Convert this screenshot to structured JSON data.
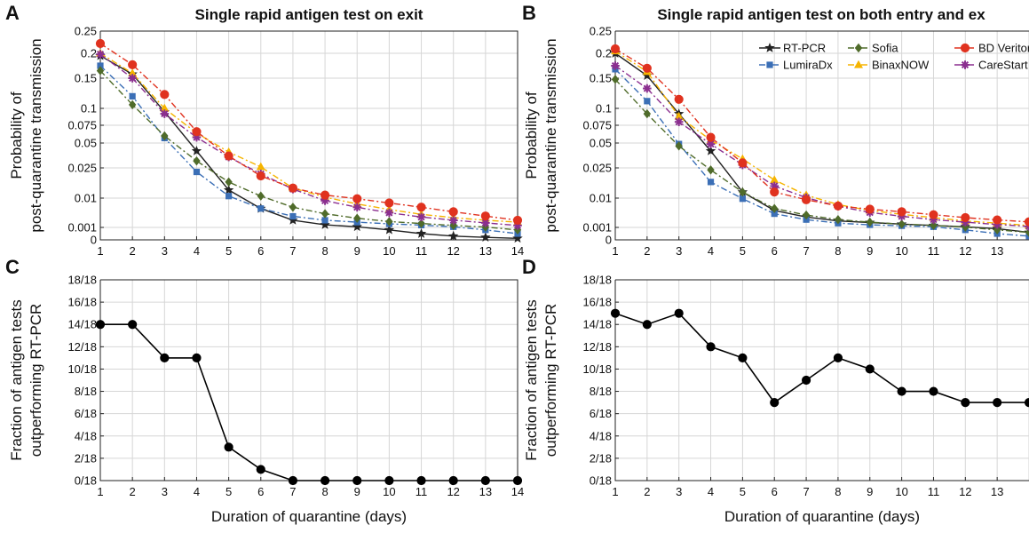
{
  "chart_data": [
    {
      "panel": "A",
      "type": "line",
      "title": "Single rapid antigen test on exit",
      "xlabel": "",
      "ylabel": [
        "Probability of",
        "post-quarantine transmission"
      ],
      "x": [
        1,
        2,
        3,
        4,
        5,
        6,
        7,
        8,
        9,
        10,
        11,
        12,
        13,
        14
      ],
      "xlim": [
        1,
        14
      ],
      "xticks": [
        "1",
        "2",
        "3",
        "4",
        "5",
        "6",
        "7",
        "8",
        "9",
        "10",
        "11",
        "12",
        "13",
        "14"
      ],
      "yscale": "nonlinear (compressed near zero)",
      "ylim": [
        0,
        0.25
      ],
      "yticks": [
        {
          "v": 0,
          "label": "0"
        },
        {
          "v": 0.001,
          "label": "0.001"
        },
        {
          "v": 0.01,
          "label": "0.01"
        },
        {
          "v": 0.025,
          "label": "0.025"
        },
        {
          "v": 0.05,
          "label": "0.05"
        },
        {
          "v": 0.075,
          "label": "0.075"
        },
        {
          "v": 0.1,
          "label": "0.1"
        },
        {
          "v": 0.15,
          "label": "0.15"
        },
        {
          "v": 0.2,
          "label": "0.2"
        },
        {
          "v": 0.25,
          "label": "0.25"
        }
      ],
      "grid": true,
      "series": [
        {
          "name": "RT-PCR",
          "color": "#222222",
          "marker": "star",
          "dash": "solid",
          "values": [
            0.195,
            0.158,
            0.095,
            0.042,
            0.014,
            0.0068,
            0.0032,
            0.0018,
            0.0012,
            0.0008,
            0.0005,
            0.0003,
            0.0002,
            0.00012
          ]
        },
        {
          "name": "LumiraDx",
          "color": "#3b6fb6",
          "marker": "square",
          "dash": "dashdot",
          "values": [
            0.175,
            0.12,
            0.057,
            0.023,
            0.011,
            0.0068,
            0.0044,
            0.0032,
            0.0026,
            0.0021,
            0.0017,
            0.0012,
            0.0008,
            0.0005
          ]
        },
        {
          "name": "Sofia",
          "color": "#4f6b2a",
          "marker": "diamond",
          "dash": "dashdot",
          "values": [
            0.165,
            0.106,
            0.06,
            0.032,
            0.018,
            0.011,
            0.0072,
            0.0052,
            0.0038,
            0.0028,
            0.0022,
            0.0016,
            0.0011,
            0.0008
          ]
        },
        {
          "name": "BinaxNOW",
          "color": "#f5b400",
          "marker": "triangle",
          "dash": "dashdot",
          "values": [
            0.2,
            0.16,
            0.1,
            0.064,
            0.041,
            0.026,
            0.015,
            0.0105,
            0.0082,
            0.0065,
            0.005,
            0.004,
            0.0032,
            0.0026
          ]
        },
        {
          "name": "CareStart",
          "color": "#8b2f8f",
          "marker": "asterisk",
          "dash": "dashdot",
          "values": [
            0.198,
            0.15,
            0.092,
            0.058,
            0.036,
            0.022,
            0.0145,
            0.0092,
            0.0072,
            0.0055,
            0.0042,
            0.0032,
            0.0024,
            0.0016
          ]
        },
        {
          "name": "BD Veritor",
          "color": "#e0321f",
          "marker": "circle",
          "dash": "dashdot",
          "values": [
            0.222,
            0.177,
            0.123,
            0.066,
            0.037,
            0.021,
            0.015,
            0.0115,
            0.0098,
            0.0085,
            0.0072,
            0.0058,
            0.0045,
            0.0032
          ]
        }
      ]
    },
    {
      "panel": "B",
      "type": "line",
      "title": "Single rapid antigen test on both entry and ex",
      "xlabel": "",
      "ylabel": [
        "Probability of",
        "post-quarantine transmission"
      ],
      "x": [
        1,
        2,
        3,
        4,
        5,
        6,
        7,
        8,
        9,
        10,
        11,
        12,
        13,
        14
      ],
      "xlim": [
        1,
        14
      ],
      "xticks": [
        "1",
        "2",
        "3",
        "4",
        "5",
        "6",
        "7",
        "8",
        "9",
        "10",
        "11",
        "12",
        "13"
      ],
      "yscale": "nonlinear (compressed near zero)",
      "ylim": [
        0,
        0.25
      ],
      "yticks": [
        {
          "v": 0,
          "label": "0"
        },
        {
          "v": 0.001,
          "label": "0.001"
        },
        {
          "v": 0.01,
          "label": "0.01"
        },
        {
          "v": 0.025,
          "label": "0.025"
        },
        {
          "v": 0.05,
          "label": "0.05"
        },
        {
          "v": 0.075,
          "label": "0.075"
        },
        {
          "v": 0.1,
          "label": "0.1"
        },
        {
          "v": 0.15,
          "label": "0.15"
        },
        {
          "v": 0.2,
          "label": "0.2"
        },
        {
          "v": 0.25,
          "label": "0.25"
        }
      ],
      "grid": true,
      "legend": {
        "placement": "top-right",
        "columns": 3,
        "order": [
          "RT-PCR",
          "Sofia",
          "BD Veritor",
          "LumiraDx",
          "BinaxNOW",
          "CareStart"
        ]
      },
      "series": [
        {
          "name": "RT-PCR",
          "color": "#222222",
          "marker": "star",
          "dash": "solid",
          "values": [
            0.2,
            0.155,
            0.092,
            0.042,
            0.013,
            0.0062,
            0.0042,
            0.003,
            0.0025,
            0.002,
            0.0016,
            0.0012,
            0.0009,
            0.0006
          ]
        },
        {
          "name": "LumiraDx",
          "color": "#3b6fb6",
          "marker": "square",
          "dash": "dashdot",
          "values": [
            0.168,
            0.112,
            0.049,
            0.018,
            0.0098,
            0.0052,
            0.0034,
            0.0023,
            0.0018,
            0.0015,
            0.0012,
            0.0008,
            0.0005,
            0.0003
          ]
        },
        {
          "name": "Sofia",
          "color": "#4f6b2a",
          "marker": "diamond",
          "dash": "dashdot",
          "values": [
            0.148,
            0.092,
            0.047,
            0.024,
            0.013,
            0.0068,
            0.0048,
            0.0034,
            0.0026,
            0.002,
            0.0016,
            0.0011,
            0.0008,
            0.0006
          ]
        },
        {
          "name": "BinaxNOW",
          "color": "#f5b400",
          "marker": "triangle",
          "dash": "dashdot",
          "values": [
            0.205,
            0.163,
            0.088,
            0.054,
            0.034,
            0.019,
            0.0115,
            0.008,
            0.0062,
            0.005,
            0.004,
            0.003,
            0.0023,
            0.0016
          ]
        },
        {
          "name": "CareStart",
          "color": "#8b2f8f",
          "marker": "asterisk",
          "dash": "dashdot",
          "values": [
            0.175,
            0.133,
            0.08,
            0.049,
            0.028,
            0.016,
            0.0102,
            0.0075,
            0.0056,
            0.0044,
            0.0034,
            0.0026,
            0.0019,
            0.0013
          ]
        },
        {
          "name": "BD Veritor",
          "color": "#e0321f",
          "marker": "circle",
          "dash": "dashdot",
          "values": [
            0.21,
            0.17,
            0.115,
            0.058,
            0.03,
            0.013,
            0.0095,
            0.0076,
            0.0066,
            0.0058,
            0.0049,
            0.004,
            0.0033,
            0.0027
          ]
        }
      ]
    },
    {
      "panel": "C",
      "type": "line",
      "title": "",
      "xlabel": "Duration of quarantine (days)",
      "ylabel": [
        "Fraction of antigen tests",
        "outperforming RT-PCR"
      ],
      "x": [
        1,
        2,
        3,
        4,
        5,
        6,
        7,
        8,
        9,
        10,
        11,
        12,
        13,
        14
      ],
      "xlim": [
        1,
        14
      ],
      "xticks": [
        "1",
        "2",
        "3",
        "4",
        "5",
        "6",
        "7",
        "8",
        "9",
        "10",
        "11",
        "12",
        "13",
        "14"
      ],
      "ylim": [
        0,
        18
      ],
      "yticks": [
        {
          "v": 0,
          "label": "0/18"
        },
        {
          "v": 2,
          "label": "2/18"
        },
        {
          "v": 4,
          "label": "4/18"
        },
        {
          "v": 6,
          "label": "6/18"
        },
        {
          "v": 8,
          "label": "8/18"
        },
        {
          "v": 10,
          "label": "10/18"
        },
        {
          "v": 12,
          "label": "12/18"
        },
        {
          "v": 14,
          "label": "14/18"
        },
        {
          "v": 16,
          "label": "16/18"
        },
        {
          "v": 18,
          "label": "18/18"
        }
      ],
      "grid": true,
      "series": [
        {
          "name": "",
          "color": "#000000",
          "marker": "circle",
          "dash": "solid",
          "values": [
            14,
            14,
            11,
            11,
            3,
            1,
            0,
            0,
            0,
            0,
            0,
            0,
            0,
            0
          ]
        }
      ]
    },
    {
      "panel": "D",
      "type": "line",
      "title": "",
      "xlabel": "Duration of quarantine (days)",
      "ylabel": [
        "Fraction of antigen tests",
        "outperforming RT-PCR"
      ],
      "x": [
        1,
        2,
        3,
        4,
        5,
        6,
        7,
        8,
        9,
        10,
        11,
        12,
        13,
        14
      ],
      "xlim": [
        1,
        14
      ],
      "xticks": [
        "1",
        "2",
        "3",
        "4",
        "5",
        "6",
        "7",
        "8",
        "9",
        "10",
        "11",
        "12",
        "13"
      ],
      "ylim": [
        0,
        18
      ],
      "yticks": [
        {
          "v": 0,
          "label": "0/18"
        },
        {
          "v": 2,
          "label": "2/18"
        },
        {
          "v": 4,
          "label": "4/18"
        },
        {
          "v": 6,
          "label": "6/18"
        },
        {
          "v": 8,
          "label": "8/18"
        },
        {
          "v": 10,
          "label": "10/18"
        },
        {
          "v": 12,
          "label": "12/18"
        },
        {
          "v": 14,
          "label": "14/18"
        },
        {
          "v": 16,
          "label": "16/18"
        },
        {
          "v": 18,
          "label": "18/18"
        }
      ],
      "grid": true,
      "series": [
        {
          "name": "",
          "color": "#000000",
          "marker": "circle",
          "dash": "solid",
          "values": [
            15,
            14,
            15,
            12,
            11,
            7,
            9,
            11,
            10,
            8,
            8,
            7,
            7,
            7
          ]
        }
      ]
    }
  ]
}
